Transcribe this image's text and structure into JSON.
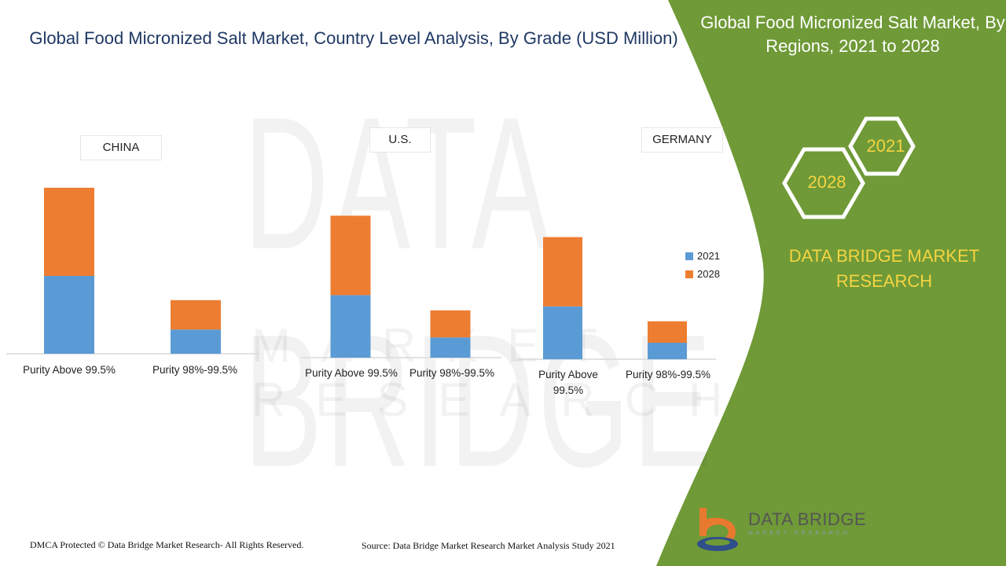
{
  "title": "Global Food Micronized Salt Market, Country Level Analysis, By Grade  (USD Million)",
  "side_panel": {
    "title": "Global Food Micronized Salt Market, By Regions, 2021 to 2028",
    "hex_year_a": "2021",
    "hex_year_b": "2028",
    "brand_name": "DATA BRIDGE MARKET RESEARCH",
    "panel_color": "#6f9a37"
  },
  "footer": {
    "dmca": "DMCA Protected © Data Bridge Market Research- All Rights Reserved.",
    "source": "Source: Data Bridge Market Research Market Analysis Study 2021"
  },
  "logo": {
    "name": "DATA BRIDGE",
    "sub": "MARKET RESEARCH"
  },
  "watermark": {
    "line1": "DATA BRIDGE",
    "line2": "MARKET RESEARCH"
  },
  "colors": {
    "series_2021": "#5b9bd5",
    "series_2028": "#ed7d31",
    "title": "#1f3864",
    "accent_text": "#f5d442"
  },
  "chart_data": [
    {
      "type": "bar",
      "stacked": true,
      "title": "CHINA",
      "categories": [
        "Purity Above 99.5%",
        "Purity 98%-99.5%"
      ],
      "series": [
        {
          "name": "2021",
          "values": [
            45,
            14
          ]
        },
        {
          "name": "2028",
          "values": [
            51,
            17
          ]
        }
      ],
      "ylim": [
        0,
        100
      ],
      "legend": "none"
    },
    {
      "type": "bar",
      "stacked": true,
      "title": "U.S.",
      "categories": [
        "Purity Above 99.5%",
        "Purity 98%-99.5%"
      ],
      "series": [
        {
          "name": "2021",
          "values": [
            37,
            12
          ]
        },
        {
          "name": "2028",
          "values": [
            47,
            16
          ]
        }
      ],
      "ylim": [
        0,
        100
      ],
      "legend": "none"
    },
    {
      "type": "bar",
      "stacked": true,
      "title": "GERMANY",
      "categories": [
        "Purity Above 99.5%",
        "Purity 98%-99.5%"
      ],
      "series": [
        {
          "name": "2021",
          "values": [
            32,
            10
          ]
        },
        {
          "name": "2028",
          "values": [
            42,
            13
          ]
        }
      ],
      "ylim": [
        0,
        100
      ],
      "legend": "right"
    }
  ]
}
